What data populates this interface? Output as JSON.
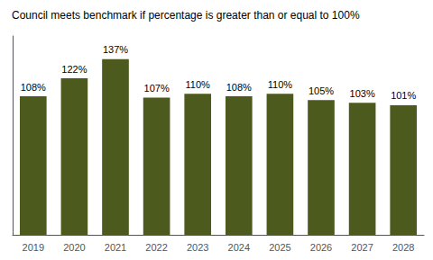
{
  "chart_data": {
    "type": "bar",
    "title": "Council meets benchmark if percentage is greater than or equal to 100%",
    "categories": [
      "2019",
      "2020",
      "2021",
      "2022",
      "2023",
      "2024",
      "2025",
      "2026",
      "2027",
      "2028"
    ],
    "values": [
      108,
      122,
      137,
      107,
      110,
      108,
      110,
      105,
      103,
      101
    ],
    "value_labels": [
      "108%",
      "122%",
      "137%",
      "107%",
      "110%",
      "108%",
      "110%",
      "105%",
      "103%",
      "101%"
    ],
    "data_labels": true,
    "color": "#4d5a1e",
    "ylim": [
      0,
      155
    ],
    "tick_labels": "x",
    "grid": false
  }
}
